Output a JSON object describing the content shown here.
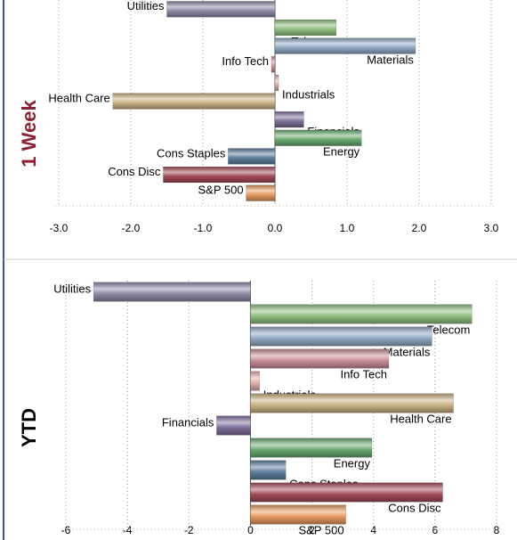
{
  "colors": {
    "frame": "#3a4fa0",
    "grid": "#9a9a9a",
    "week_label": "#8b2332",
    "ytd_label": "#000000"
  },
  "chart_data": [
    {
      "type": "bar",
      "orientation": "horizontal",
      "panel_label": "1 Week",
      "categories": [
        "Utilities",
        "Telecom",
        "Materials",
        "Info Tech",
        "Industrials",
        "Health Care",
        "Financials",
        "Energy",
        "Cons Staples",
        "Cons Disc",
        "S&P 500"
      ],
      "values": [
        -1.5,
        0.85,
        1.95,
        -0.05,
        0.05,
        -2.25,
        0.4,
        1.2,
        -0.65,
        -1.55,
        -0.4
      ],
      "xlim": [
        -3.0,
        3.0
      ],
      "ticks": [
        "-3.0",
        "-2.0",
        "-1.0",
        "0.0",
        "1.0",
        "2.0",
        "3.0"
      ],
      "grid": "vertical dotted"
    },
    {
      "type": "bar",
      "orientation": "horizontal",
      "panel_label": "YTD",
      "categories": [
        "Utilities",
        "Telecom",
        "Materials",
        "Info Tech",
        "Industrials",
        "Health Care",
        "Financials",
        "Energy",
        "Cons Staples",
        "Cons Disc",
        "S&P 500"
      ],
      "values": [
        -5.1,
        7.2,
        5.9,
        4.5,
        0.3,
        6.6,
        -1.1,
        3.95,
        1.15,
        6.25,
        3.1
      ],
      "xlim": [
        -6,
        8
      ],
      "ticks": [
        "-6",
        "-4",
        "-2",
        "0",
        "2",
        "4",
        "6",
        "8"
      ],
      "grid": "vertical dotted"
    }
  ],
  "bar_colors": {
    "Utilities": "#8e8aa6",
    "Telecom": "#8fbf80",
    "Materials": "#8fa8c4",
    "Info Tech": "#c98f98",
    "Industrials": "#e4b0aa",
    "Health Care": "#c9b184",
    "Financials": "#7e6f9a",
    "Energy": "#6aaa72",
    "Cons Staples": "#5e7f9d",
    "Cons Disc": "#a44a56",
    "S&P 500": "#e69a5e"
  }
}
